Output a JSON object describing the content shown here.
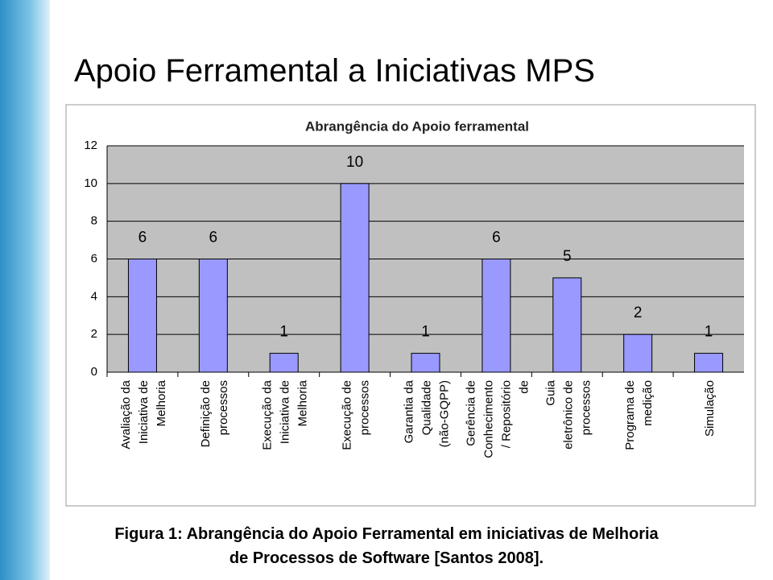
{
  "slide_title": "Apoio Ferramental a Iniciativas MPS",
  "chart_data": {
    "type": "bar",
    "title": "Abrangência do Apoio ferramental",
    "categories": [
      [
        "Avaliação da",
        "Iniciativa de",
        "Melhoria"
      ],
      [
        "Definição de",
        "processos"
      ],
      [
        "Execução da",
        "Iniciativa de",
        "Melhoria"
      ],
      [
        "Execução de",
        "processos"
      ],
      [
        "Garantia da",
        "Qualidade",
        "(não-GQPP)"
      ],
      [
        "Gerência de",
        "Conhecimento",
        "/ Repositório",
        "de"
      ],
      [
        "Guia",
        "eletrônico de",
        "processos"
      ],
      [
        "Programa de",
        "medição"
      ],
      [
        "Simulação"
      ]
    ],
    "values": [
      6,
      6,
      1,
      10,
      1,
      6,
      5,
      2,
      1
    ],
    "color": "#9999ff",
    "ylim": [
      0,
      12
    ],
    "yticks": [
      0,
      2,
      4,
      6,
      8,
      10,
      12
    ],
    "grid": true,
    "data_labels": true
  },
  "caption": [
    "Figura 1: Abrangência do Apoio Ferramental em iniciativas de Melhoria",
    "de Processos de Software [Santos 2008]."
  ]
}
